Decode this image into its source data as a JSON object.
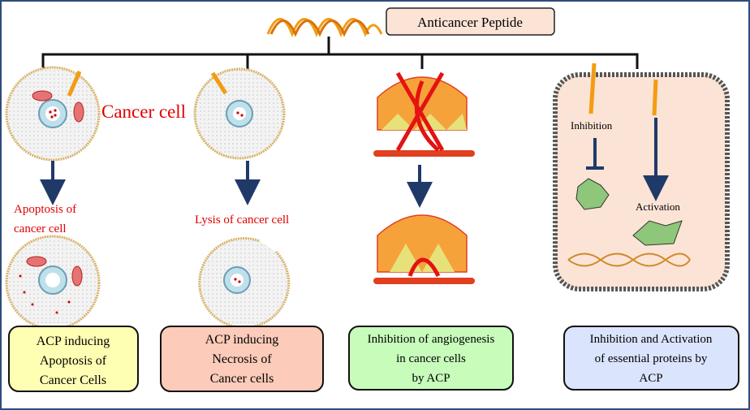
{
  "title": "Anticancer Peptide",
  "labels": {
    "cancer_cell": "Cancer cell",
    "apoptosis_line1": "Apoptosis of",
    "apoptosis_line2": "cancer cell",
    "lysis": "Lysis of cancer cell",
    "inhibition": "Inhibition",
    "activation": "Activation"
  },
  "boxes": [
    {
      "lines": [
        "ACP inducing",
        "Apoptosis of",
        "Cancer Cells"
      ],
      "color": "#ffffb3"
    },
    {
      "lines": [
        "ACP inducing",
        "Necrosis of",
        "Cancer cells"
      ],
      "color": "#fdcbb9"
    },
    {
      "lines": [
        "Inhibition of  angiogenesis",
        "in cancer cells",
        "by ACP"
      ],
      "color": "#c7fcbb"
    },
    {
      "lines": [
        "Inhibition and Activation",
        "of essential proteins by",
        "ACP"
      ],
      "color": "#dbe4fd"
    }
  ],
  "colors": {
    "frame": "#2f4b7c",
    "arrow": "#1f3a68",
    "peptide": "#f39c12",
    "red_text": "#e00000"
  }
}
